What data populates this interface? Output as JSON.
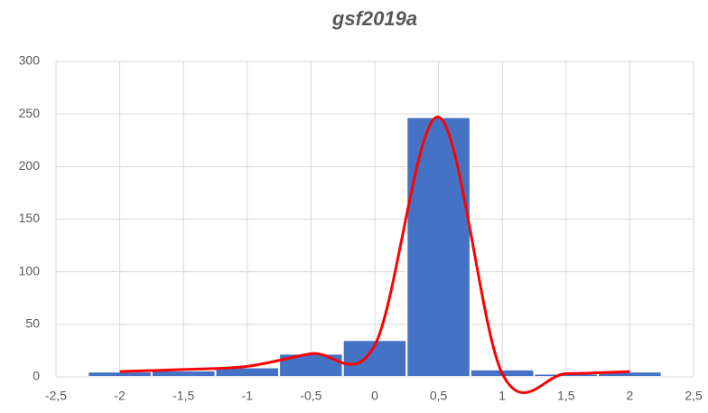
{
  "chart_data": {
    "type": "histogram",
    "title": "gsf2019a",
    "bins": [
      -2.25,
      -1.75,
      -1.25,
      -0.75,
      -0.25,
      0.25,
      0.75,
      1.25,
      1.75,
      2.25
    ],
    "counts": [
      5,
      6,
      9,
      22,
      35,
      247,
      7,
      3,
      5
    ],
    "color": "#4472c4",
    "line": {
      "x": [
        -2,
        -1.5,
        -1,
        -0.5,
        0,
        0.5,
        1,
        1.5,
        2
      ],
      "values": [
        5,
        7,
        10,
        22,
        30,
        247,
        3,
        3,
        5
      ],
      "color": "#ff0000"
    },
    "xlim": [
      -2.5,
      2.5
    ],
    "xticks": [
      {
        "value": -2.5,
        "label": "-2,5"
      },
      -2,
      {
        "value": -1.5,
        "label": "-1,5"
      },
      -1,
      {
        "value": -0.5,
        "label": "-0,5"
      },
      0,
      {
        "value": 0.5,
        "label": "0,5"
      },
      1,
      {
        "value": 1.5,
        "label": "1,5"
      },
      2,
      {
        "value": 2.5,
        "label": "2,5"
      }
    ],
    "ylim": [
      0,
      300
    ],
    "yticks": [
      0,
      50,
      100,
      150,
      200,
      250,
      300
    ],
    "grid": true
  }
}
